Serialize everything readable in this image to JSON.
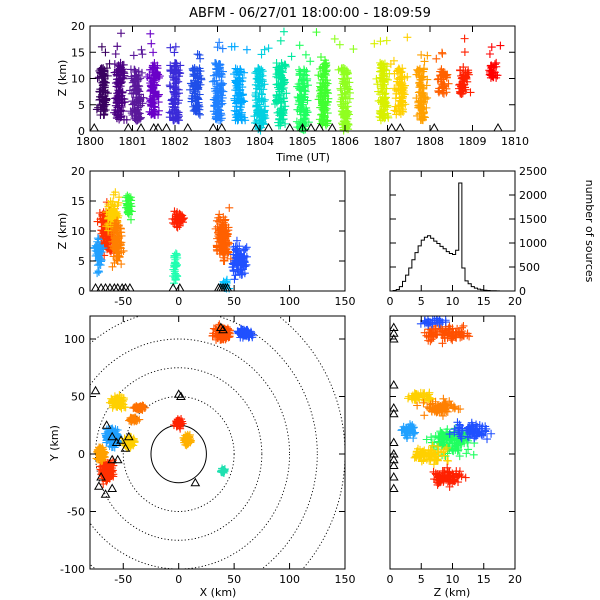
{
  "chart_data": [
    {
      "id": "time-height",
      "type": "scatter",
      "title": "ABFM - 06/27/01 18:00:00 - 18:09:59",
      "xlabel": "Time (UT)",
      "ylabel": "Z (km)",
      "xlim": [
        0,
        10
      ],
      "ylim": [
        0,
        20
      ],
      "x_tick_labels": [
        "1800",
        "1801",
        "1802",
        "1803",
        "1804",
        "1805",
        "1806",
        "1807",
        "1808",
        "1809",
        "1810"
      ],
      "y_tick_labels": [
        "0",
        "5",
        "10",
        "15",
        "20"
      ],
      "color_scale": "time (purple to red)",
      "sensor_markers": "triangles",
      "clusters": [
        {
          "t": 0.3,
          "z0": 3,
          "z1": 12,
          "color": "#3a0060"
        },
        {
          "t": 0.7,
          "z0": 2,
          "z1": 13,
          "color": "#4b0082"
        },
        {
          "t": 1.1,
          "z0": 2,
          "z1": 12,
          "color": "#5a189a"
        },
        {
          "t": 1.5,
          "z0": 3,
          "z1": 13,
          "color": "#6a00c8"
        },
        {
          "t": 2.0,
          "z0": 2,
          "z1": 13,
          "color": "#3a2bd8"
        },
        {
          "t": 2.5,
          "z0": 3,
          "z1": 12,
          "color": "#1f4ee8"
        },
        {
          "t": 3.0,
          "z0": 2,
          "z1": 13,
          "color": "#1e80ff"
        },
        {
          "t": 3.5,
          "z0": 2,
          "z1": 12,
          "color": "#00a8ff"
        },
        {
          "t": 4.0,
          "z0": 0,
          "z1": 12,
          "color": "#00d0e0"
        },
        {
          "t": 4.5,
          "z0": 1,
          "z1": 13,
          "color": "#00e8a0"
        },
        {
          "t": 5.0,
          "z0": 0,
          "z1": 12,
          "color": "#20ff60"
        },
        {
          "t": 5.5,
          "z0": 1,
          "z1": 13,
          "color": "#40ff30"
        },
        {
          "t": 6.0,
          "z0": 0,
          "z1": 12,
          "color": "#90ff20"
        },
        {
          "t": 6.9,
          "z0": 2,
          "z1": 13,
          "color": "#d8f000"
        },
        {
          "t": 7.3,
          "z0": 3,
          "z1": 12,
          "color": "#ffd000"
        },
        {
          "t": 7.8,
          "z0": 2,
          "z1": 12,
          "color": "#ffa000"
        },
        {
          "t": 8.3,
          "z0": 7,
          "z1": 12,
          "color": "#ff6000"
        },
        {
          "t": 8.8,
          "z0": 7,
          "z1": 12,
          "color": "#ff2000"
        },
        {
          "t": 9.5,
          "z0": 10,
          "z1": 13,
          "color": "#ff0000"
        }
      ],
      "triangles_t": [
        0.1,
        0.9,
        1.2,
        1.5,
        1.6,
        1.8,
        2.3,
        2.9,
        3.1,
        3.9,
        4.2,
        4.7,
        5.0,
        5.2,
        5.4,
        5.7,
        7.1,
        7.3,
        8.1,
        9.6
      ]
    },
    {
      "id": "xz",
      "type": "scatter",
      "ylabel": "Z (km)",
      "xlim": [
        -80,
        150
      ],
      "ylim": [
        0,
        20
      ],
      "x_tick_labels": [
        "-50",
        "0",
        "50",
        "100",
        "150"
      ],
      "y_tick_labels": [
        "0",
        "5",
        "10",
        "15",
        "20"
      ],
      "clusters": [
        {
          "x": -65,
          "z": 10,
          "w": 20,
          "h": 12,
          "color": "#ff3000"
        },
        {
          "x": -60,
          "z": 13,
          "w": 15,
          "h": 8,
          "color": "#ffd000"
        },
        {
          "x": -55,
          "z": 8,
          "w": 15,
          "h": 10,
          "color": "#ff8000"
        },
        {
          "x": -72,
          "z": 6,
          "w": 10,
          "h": 8,
          "color": "#20a0ff"
        },
        {
          "x": -45,
          "z": 14,
          "w": 8,
          "h": 6,
          "color": "#30ff40"
        },
        {
          "x": 0,
          "z": 12,
          "w": 14,
          "h": 4,
          "color": "#ff2000"
        },
        {
          "x": -3,
          "z": 4,
          "w": 6,
          "h": 8,
          "color": "#20ffb0"
        },
        {
          "x": 40,
          "z": 9,
          "w": 18,
          "h": 12,
          "color": "#ff6000"
        },
        {
          "x": 55,
          "z": 5,
          "w": 20,
          "h": 8,
          "color": "#2050ff"
        },
        {
          "x": 42,
          "z": 1,
          "w": 8,
          "h": 2,
          "color": "#00c0ff"
        }
      ],
      "triangles_x": [
        -75,
        -70,
        -66,
        -62,
        -58,
        -55,
        -51,
        -48,
        -44,
        -5,
        1,
        36,
        38,
        40,
        42,
        44
      ]
    },
    {
      "id": "height-histogram",
      "type": "bar",
      "xlim": [
        0,
        20
      ],
      "ylim": [
        0,
        2500
      ],
      "ylabel": "number of sources",
      "x_tick_labels": [
        "0",
        "5",
        "10",
        "15",
        "20"
      ],
      "y_tick_labels": [
        "0",
        "500",
        "1000",
        "1500",
        "2000",
        "2500"
      ],
      "bin_width": 0.5,
      "bins_start": 0,
      "values": [
        0,
        10,
        30,
        90,
        200,
        330,
        480,
        650,
        800,
        940,
        1060,
        1120,
        1150,
        1100,
        1040,
        990,
        930,
        880,
        820,
        780,
        760,
        850,
        2250,
        480,
        210,
        150,
        90,
        60,
        40,
        25,
        15,
        10,
        6,
        4,
        2,
        1,
        1,
        0,
        0,
        0
      ]
    },
    {
      "id": "plan-view",
      "type": "scatter",
      "xlabel": "X (km)",
      "ylabel": "Y (km)",
      "xlim": [
        -80,
        150
      ],
      "ylim": [
        -100,
        120
      ],
      "x_tick_labels": [
        "-50",
        "0",
        "50",
        "100",
        "150"
      ],
      "y_tick_labels": [
        "-100",
        "-50",
        "0",
        "50",
        "100"
      ],
      "rings_km": [
        25,
        50,
        75,
        100,
        125,
        150
      ],
      "ring_center": [
        0,
        0
      ],
      "clusters": [
        {
          "x": -60,
          "y": 15,
          "w": 18,
          "h": 24,
          "color": "#20a0ff"
        },
        {
          "x": -55,
          "y": 45,
          "w": 16,
          "h": 14,
          "color": "#ffd000"
        },
        {
          "x": -65,
          "y": -15,
          "w": 16,
          "h": 24,
          "color": "#ff3000"
        },
        {
          "x": -70,
          "y": 0,
          "w": 10,
          "h": 18,
          "color": "#ffa000"
        },
        {
          "x": -45,
          "y": 10,
          "w": 12,
          "h": 14,
          "color": "#ffd000"
        },
        {
          "x": -40,
          "y": 30,
          "w": 12,
          "h": 6,
          "color": "#ff8000"
        },
        {
          "x": -35,
          "y": 40,
          "w": 14,
          "h": 6,
          "color": "#ff7000"
        },
        {
          "x": 0,
          "y": 27,
          "w": 10,
          "h": 12,
          "color": "#ff2000"
        },
        {
          "x": 8,
          "y": 12,
          "w": 10,
          "h": 14,
          "color": "#ffb000"
        },
        {
          "x": 40,
          "y": -15,
          "w": 6,
          "h": 5,
          "color": "#20e0b0"
        },
        {
          "x": 40,
          "y": 105,
          "w": 22,
          "h": 16,
          "color": "#ff5000"
        },
        {
          "x": 60,
          "y": 105,
          "w": 18,
          "h": 10,
          "color": "#2050ff"
        }
      ],
      "triangles": [
        [
          -75,
          55
        ],
        [
          -65,
          25
        ],
        [
          -60,
          15
        ],
        [
          -56,
          10
        ],
        [
          -52,
          12
        ],
        [
          -48,
          5
        ],
        [
          -45,
          15
        ],
        [
          -60,
          -5
        ],
        [
          -70,
          -20
        ],
        [
          -72,
          -28
        ],
        [
          -66,
          -35
        ],
        [
          -60,
          -30
        ],
        [
          -55,
          -5
        ],
        [
          2,
          50
        ],
        [
          0,
          52
        ],
        [
          15,
          -25
        ],
        [
          38,
          110
        ],
        [
          40,
          108
        ]
      ]
    },
    {
      "id": "zy",
      "type": "scatter",
      "xlabel": "Z (km)",
      "xlim": [
        0,
        20
      ],
      "ylim": [
        -100,
        120
      ],
      "x_tick_labels": [
        "0",
        "5",
        "10",
        "15",
        "20"
      ],
      "clusters": [
        {
          "z": 9,
          "y": 105,
          "w": 10,
          "h": 20,
          "color": "#ff5000"
        },
        {
          "z": 7,
          "y": 115,
          "w": 6,
          "h": 8,
          "color": "#2050ff"
        },
        {
          "z": 5,
          "y": 50,
          "w": 6,
          "h": 14,
          "color": "#ffd000"
        },
        {
          "z": 8,
          "y": 40,
          "w": 8,
          "h": 18,
          "color": "#ff8000"
        },
        {
          "z": 10,
          "y": 10,
          "w": 10,
          "h": 30,
          "color": "#20ff60"
        },
        {
          "z": 6,
          "y": 0,
          "w": 8,
          "h": 20,
          "color": "#ffd000"
        },
        {
          "z": 9,
          "y": -20,
          "w": 8,
          "h": 20,
          "color": "#ff2000"
        },
        {
          "z": 13,
          "y": 20,
          "w": 8,
          "h": 20,
          "color": "#2050ff"
        },
        {
          "z": 3,
          "y": 20,
          "w": 4,
          "h": 20,
          "color": "#20a0ff"
        }
      ],
      "triangles_y": [
        110,
        105,
        100,
        60,
        40,
        35,
        10,
        0,
        -5,
        -10,
        -20,
        -30
      ]
    }
  ]
}
